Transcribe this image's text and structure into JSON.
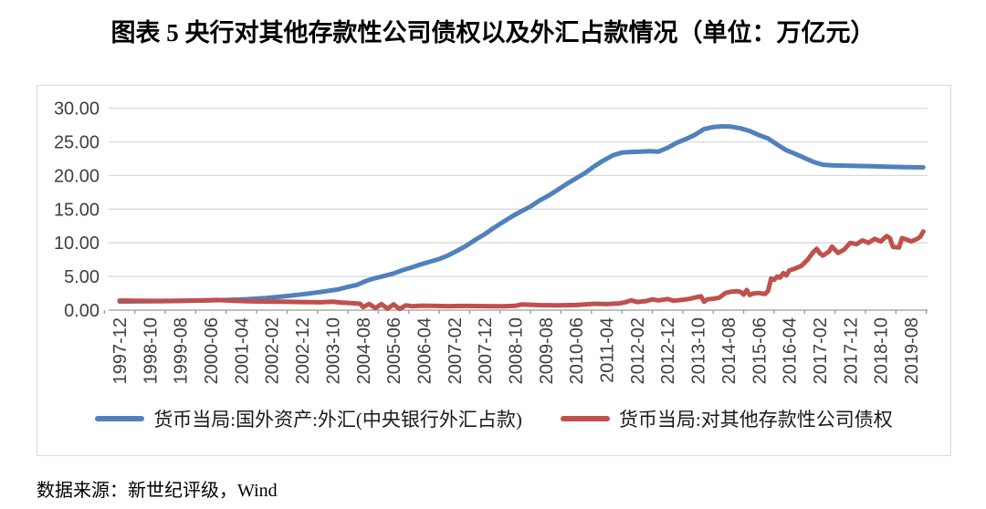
{
  "title": "图表 5  央行对其他存款性公司债权以及外汇占款情况（单位：万亿元）",
  "source_note": "数据来源：新世纪评级，Wind",
  "colors": {
    "series_fx_blue": "#4F81BD",
    "series_claims_red": "#C0504D",
    "gridline": "#D9D9D9",
    "axis_line": "#999999",
    "tick_label": "#404040",
    "chart_border": "#D9D9D9"
  },
  "chart_data": {
    "type": "line",
    "title": "图表 5  央行对其他存款性公司债权以及外汇占款情况（单位：万亿元）",
    "xlabel": "",
    "ylabel": "",
    "ylim": [
      0,
      30
    ],
    "ytick_labels": [
      "0.00",
      "5.00",
      "10.00",
      "15.00",
      "20.00",
      "25.00",
      "30.00"
    ],
    "grid": true,
    "legend_position": "bottom",
    "x_base": "1997-12",
    "x_tick_interval_months": 10,
    "xtick_labels": [
      "1997-12",
      "1998-10",
      "1999-08",
      "2000-06",
      "2001-04",
      "2002-02",
      "2002-12",
      "2003-10",
      "2004-08",
      "2005-06",
      "2006-04",
      "2007-02",
      "2007-12",
      "2008-10",
      "2009-08",
      "2010-06",
      "2011-04",
      "2012-02",
      "2012-12",
      "2013-10",
      "2014-08",
      "2015-06",
      "2016-04",
      "2017-02",
      "2017-12",
      "2018-10",
      "2019-08"
    ],
    "series": [
      {
        "name": "货币当局:国外资产:外汇(中央银行外汇占款)",
        "color": "#4F81BD",
        "points": [
          [
            "1997-12",
            1.28
          ],
          [
            "1998-06",
            1.3
          ],
          [
            "1998-12",
            1.33
          ],
          [
            "1999-06",
            1.36
          ],
          [
            "1999-12",
            1.41
          ],
          [
            "2000-06",
            1.46
          ],
          [
            "2000-12",
            1.52
          ],
          [
            "2001-06",
            1.63
          ],
          [
            "2001-12",
            1.8
          ],
          [
            "2002-06",
            2.05
          ],
          [
            "2002-12",
            2.35
          ],
          [
            "2003-06",
            2.7
          ],
          [
            "2003-12",
            3.1
          ],
          [
            "2004-03",
            3.45
          ],
          [
            "2004-06",
            3.75
          ],
          [
            "2004-09",
            4.35
          ],
          [
            "2004-12",
            4.75
          ],
          [
            "2005-03",
            5.1
          ],
          [
            "2005-06",
            5.45
          ],
          [
            "2005-09",
            5.95
          ],
          [
            "2005-12",
            6.35
          ],
          [
            "2006-03",
            6.8
          ],
          [
            "2006-06",
            7.2
          ],
          [
            "2006-09",
            7.6
          ],
          [
            "2006-12",
            8.15
          ],
          [
            "2007-03",
            8.85
          ],
          [
            "2007-06",
            9.6
          ],
          [
            "2007-09",
            10.5
          ],
          [
            "2007-12",
            11.3
          ],
          [
            "2008-03",
            12.25
          ],
          [
            "2008-06",
            13.1
          ],
          [
            "2008-09",
            13.95
          ],
          [
            "2008-12",
            14.7
          ],
          [
            "2009-03",
            15.4
          ],
          [
            "2009-06",
            16.3
          ],
          [
            "2009-09",
            17.05
          ],
          [
            "2009-12",
            17.9
          ],
          [
            "2010-03",
            18.8
          ],
          [
            "2010-06",
            19.6
          ],
          [
            "2010-09",
            20.4
          ],
          [
            "2010-12",
            21.4
          ],
          [
            "2011-03",
            22.25
          ],
          [
            "2011-06",
            23.0
          ],
          [
            "2011-09",
            23.4
          ],
          [
            "2011-12",
            23.5
          ],
          [
            "2012-03",
            23.55
          ],
          [
            "2012-06",
            23.6
          ],
          [
            "2012-09",
            23.55
          ],
          [
            "2012-12",
            24.1
          ],
          [
            "2013-03",
            24.85
          ],
          [
            "2013-06",
            25.4
          ],
          [
            "2013-09",
            26.05
          ],
          [
            "2013-12",
            26.9
          ],
          [
            "2014-03",
            27.2
          ],
          [
            "2014-06",
            27.3
          ],
          [
            "2014-09",
            27.25
          ],
          [
            "2014-12",
            27.0
          ],
          [
            "2015-03",
            26.6
          ],
          [
            "2015-06",
            26.0
          ],
          [
            "2015-09",
            25.5
          ],
          [
            "2015-12",
            24.6
          ],
          [
            "2016-03",
            23.75
          ],
          [
            "2016-06",
            23.2
          ],
          [
            "2016-09",
            22.6
          ],
          [
            "2016-12",
            22.0
          ],
          [
            "2017-03",
            21.6
          ],
          [
            "2017-06",
            21.5
          ],
          [
            "2017-12",
            21.45
          ],
          [
            "2018-06",
            21.4
          ],
          [
            "2018-12",
            21.3
          ],
          [
            "2019-06",
            21.25
          ],
          [
            "2019-12",
            21.2
          ]
        ]
      },
      {
        "name": "货币当局:对其他存款性公司债权",
        "color": "#C0504D",
        "points": [
          [
            "1997-12",
            1.42
          ],
          [
            "1998-06",
            1.4
          ],
          [
            "1998-12",
            1.37
          ],
          [
            "1999-06",
            1.38
          ],
          [
            "1999-12",
            1.42
          ],
          [
            "2000-04",
            1.47
          ],
          [
            "2000-08",
            1.5
          ],
          [
            "2000-12",
            1.42
          ],
          [
            "2001-06",
            1.33
          ],
          [
            "2001-12",
            1.28
          ],
          [
            "2002-06",
            1.24
          ],
          [
            "2002-12",
            1.2
          ],
          [
            "2003-06",
            1.17
          ],
          [
            "2003-10",
            1.26
          ],
          [
            "2004-01",
            1.12
          ],
          [
            "2004-04",
            1.05
          ],
          [
            "2004-07",
            0.95
          ],
          [
            "2004-08",
            0.45
          ],
          [
            "2004-10",
            0.92
          ],
          [
            "2004-12",
            0.3
          ],
          [
            "2005-02",
            0.9
          ],
          [
            "2005-04",
            0.22
          ],
          [
            "2005-06",
            0.85
          ],
          [
            "2005-08",
            0.18
          ],
          [
            "2005-10",
            0.72
          ],
          [
            "2005-12",
            0.58
          ],
          [
            "2006-03",
            0.66
          ],
          [
            "2006-06",
            0.64
          ],
          [
            "2006-12",
            0.6
          ],
          [
            "2007-06",
            0.63
          ],
          [
            "2007-12",
            0.6
          ],
          [
            "2008-06",
            0.57
          ],
          [
            "2008-10",
            0.65
          ],
          [
            "2008-12",
            0.84
          ],
          [
            "2009-06",
            0.75
          ],
          [
            "2009-12",
            0.72
          ],
          [
            "2010-06",
            0.76
          ],
          [
            "2010-12",
            0.95
          ],
          [
            "2011-04",
            0.9
          ],
          [
            "2011-08",
            1.0
          ],
          [
            "2011-10",
            1.15
          ],
          [
            "2011-12",
            1.45
          ],
          [
            "2012-02",
            1.2
          ],
          [
            "2012-05",
            1.35
          ],
          [
            "2012-07",
            1.6
          ],
          [
            "2012-09",
            1.45
          ],
          [
            "2012-12",
            1.65
          ],
          [
            "2013-02",
            1.4
          ],
          [
            "2013-05",
            1.55
          ],
          [
            "2013-07",
            1.67
          ],
          [
            "2013-10",
            1.98
          ],
          [
            "2013-11",
            2.05
          ],
          [
            "2013-12",
            1.25
          ],
          [
            "2014-01",
            1.6
          ],
          [
            "2014-03",
            1.7
          ],
          [
            "2014-05",
            1.85
          ],
          [
            "2014-07",
            2.55
          ],
          [
            "2014-09",
            2.75
          ],
          [
            "2014-11",
            2.8
          ],
          [
            "2014-12",
            2.7
          ],
          [
            "2015-01",
            2.3
          ],
          [
            "2015-02",
            3.0
          ],
          [
            "2015-03",
            2.25
          ],
          [
            "2015-04",
            2.45
          ],
          [
            "2015-06",
            2.55
          ],
          [
            "2015-08",
            2.4
          ],
          [
            "2015-09",
            2.85
          ],
          [
            "2015-10",
            4.7
          ],
          [
            "2015-11",
            4.5
          ],
          [
            "2015-12",
            5.0
          ],
          [
            "2016-01",
            4.85
          ],
          [
            "2016-02",
            5.5
          ],
          [
            "2016-03",
            5.15
          ],
          [
            "2016-04",
            5.9
          ],
          [
            "2016-06",
            6.2
          ],
          [
            "2016-08",
            6.6
          ],
          [
            "2016-10",
            7.5
          ],
          [
            "2016-12",
            8.7
          ],
          [
            "2017-01",
            9.1
          ],
          [
            "2017-02",
            8.45
          ],
          [
            "2017-03",
            8.1
          ],
          [
            "2017-05",
            8.7
          ],
          [
            "2017-06",
            9.45
          ],
          [
            "2017-08",
            8.5
          ],
          [
            "2017-10",
            9.0
          ],
          [
            "2017-12",
            10.0
          ],
          [
            "2018-02",
            9.8
          ],
          [
            "2018-04",
            10.35
          ],
          [
            "2018-06",
            10.0
          ],
          [
            "2018-08",
            10.6
          ],
          [
            "2018-10",
            10.2
          ],
          [
            "2018-12",
            11.0
          ],
          [
            "2019-01",
            10.7
          ],
          [
            "2019-02",
            9.4
          ],
          [
            "2019-04",
            9.3
          ],
          [
            "2019-05",
            10.7
          ],
          [
            "2019-07",
            10.4
          ],
          [
            "2019-08",
            10.2
          ],
          [
            "2019-10",
            10.6
          ],
          [
            "2019-11",
            10.9
          ],
          [
            "2019-12",
            11.7
          ]
        ]
      }
    ]
  }
}
